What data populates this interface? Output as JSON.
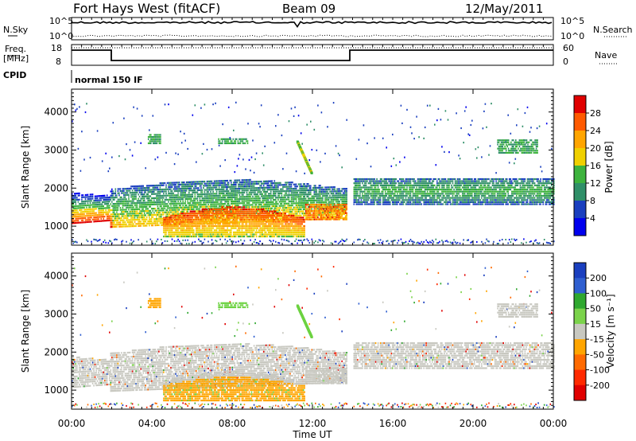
{
  "header": {
    "radar": "Fort Hays West (fitACF)",
    "beam": "Beam 09",
    "date": "12/May/2011"
  },
  "top_panel": {
    "left_label": "N.Sky",
    "right_label": "N.Search",
    "left_ticks": [
      "10^5",
      "10^0"
    ],
    "right_ticks": [
      "10^5",
      "10^0"
    ]
  },
  "freq_panel": {
    "left_label_1": "Freq.",
    "left_label_2": "[MHz]",
    "right_label": "Nave",
    "left_ticks": [
      "18",
      "8"
    ],
    "right_ticks": [
      "60",
      "0"
    ],
    "cpid_label": "CPID",
    "cpid_value": "normal 150 IF"
  },
  "chart_data": [
    {
      "type": "heatmap",
      "name": "power",
      "ylabel": "Slant Range [km]",
      "yticks": [
        1000,
        2000,
        3000,
        4000
      ],
      "ylim": [
        500,
        4600
      ],
      "colorbar_label": "Power [dB]",
      "colorbar_ticks": [
        "28",
        "24",
        "20",
        "16",
        "12",
        "8",
        "4"
      ],
      "colorbar_colors": [
        "#e00000",
        "#ff5a00",
        "#ffa500",
        "#f0d000",
        "#3db33d",
        "#2f8f68",
        "#1a3fbf",
        "#0000ee"
      ]
    },
    {
      "type": "heatmap",
      "name": "velocity",
      "ylabel": "Slant Range [km]",
      "yticks": [
        1000,
        2000,
        3000,
        4000
      ],
      "ylim": [
        500,
        4600
      ],
      "colorbar_label": "Velocity [m s⁻¹]",
      "colorbar_ticks": [
        "200",
        "100",
        "50",
        "15",
        "-15",
        "-50",
        "-100",
        "-200"
      ],
      "colorbar_colors": [
        "#1a3fbf",
        "#2f5fd0",
        "#2fa82f",
        "#7bd34b",
        "#c8c8c0",
        "#ffa500",
        "#ff6a00",
        "#ff2a00",
        "#e00000"
      ]
    }
  ],
  "x_axis": {
    "ticks": [
      "00:00",
      "04:00",
      "08:00",
      "12:00",
      "16:00",
      "20:00",
      "00:00"
    ],
    "label": "Time UT"
  },
  "colors": {
    "power_ground": "#ff4400",
    "power_scatter": "#1a3fbf",
    "vel_gray": "#c8c8c0",
    "vel_orange": "#ffa500",
    "vel_green": "#6cd240"
  }
}
